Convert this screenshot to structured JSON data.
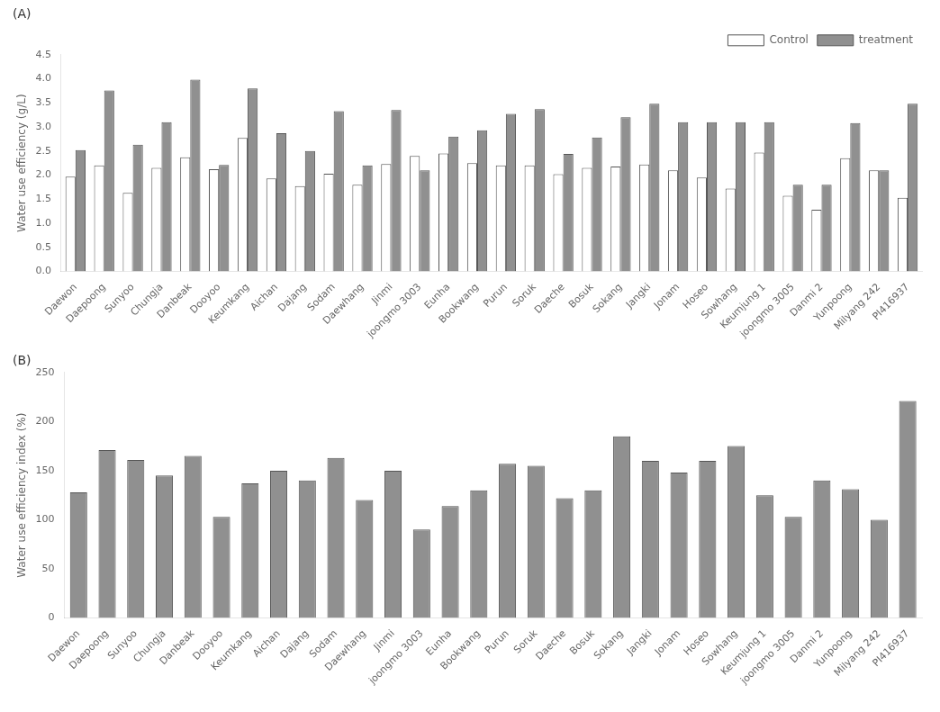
{
  "chart_data": [
    {
      "type": "bar",
      "title": "(A)",
      "categories": [
        "Daewon",
        "Daepoong",
        "Sunyoo",
        "Chungja",
        "Danbeak",
        "Dooyoo",
        "Keumkang",
        "Aichan",
        "Dajang",
        "Sodam",
        "Daewhang",
        "Jinmi",
        "joongmo 3003",
        "Eunha",
        "Bookwang",
        "Purun",
        "Soruk",
        "Daeche",
        "Bosuk",
        "Sokang",
        "Jangki",
        "Jonam",
        "Hoseo",
        "Sowhang",
        "Keumjung 1",
        "joongmo 3005",
        "Danmi 2",
        "Yunpoong",
        "Milyang 242",
        "PI416937"
      ],
      "series": [
        {
          "name": "Control",
          "color": "#ffffff",
          "values": [
            1.97,
            2.2,
            1.63,
            2.15,
            2.37,
            2.12,
            2.77,
            1.93,
            1.77,
            2.03,
            1.8,
            2.23,
            2.4,
            2.45,
            2.25,
            2.2,
            2.2,
            2.02,
            2.15,
            2.18,
            2.22,
            2.1,
            1.95,
            1.72,
            2.47,
            1.57,
            1.28,
            2.35,
            2.1,
            1.53
          ]
        },
        {
          "name": "treatment",
          "color": "#909090",
          "values": [
            2.52,
            3.76,
            2.63,
            3.1,
            3.98,
            2.21,
            3.8,
            2.87,
            2.5,
            3.33,
            2.2,
            3.35,
            2.1,
            2.8,
            2.93,
            3.27,
            3.37,
            2.44,
            2.78,
            3.2,
            3.48,
            3.1,
            3.1,
            3.1,
            3.1,
            1.8,
            1.8,
            3.08,
            2.1,
            3.48
          ]
        }
      ],
      "y_label": "Water use efficiency (g/L)",
      "ylim": [
        0,
        4.5
      ],
      "yticks": [
        {
          "value": 0,
          "label": "0.0"
        },
        0.5,
        {
          "value": 1,
          "label": "1.0"
        },
        1.5,
        {
          "value": 2,
          "label": "2.0"
        },
        2.5,
        {
          "value": 3,
          "label": "3.0"
        },
        3.5,
        {
          "value": 4,
          "label": "4.0"
        },
        4.5
      ],
      "legend": "upper right",
      "grid": false
    },
    {
      "type": "bar",
      "title": "(B)",
      "categories": [
        "Daewon",
        "Daepoong",
        "Sunyoo",
        "Chungja",
        "Danbeak",
        "Dooyoo",
        "Keumkang",
        "Aichan",
        "Dajang",
        "Sodam",
        "Daewhang",
        "Jinmi",
        "joongmo 3003",
        "Eunha",
        "Bookwang",
        "Purun",
        "Soruk",
        "Daeche",
        "Bosuk",
        "Sokang",
        "Jangki",
        "Jonam",
        "Hoseo",
        "Sowhang",
        "Keumjung 1",
        "joongmo 3005",
        "Danmi 2",
        "Yunpoong",
        "Milyang 242",
        "PI416937"
      ],
      "values": [
        128,
        171,
        161,
        145,
        165,
        103,
        137,
        150,
        140,
        163,
        120,
        150,
        90,
        114,
        130,
        157,
        155,
        122,
        130,
        185,
        160,
        148,
        160,
        175,
        125,
        103,
        140,
        131,
        100,
        221
      ],
      "color": "#909090",
      "y_label": "Water use efficiency index (%)",
      "ylim": [
        0,
        250
      ],
      "yticks": [
        0,
        50,
        100,
        150,
        200,
        250
      ],
      "grid": false
    }
  ]
}
